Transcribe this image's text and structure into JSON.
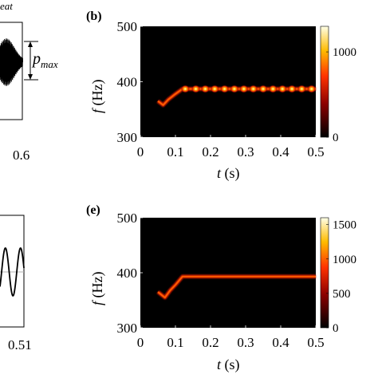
{
  "chart_data": [
    {
      "panel": "a (cropped, right edge)",
      "type": "line",
      "title_fragment": "eat",
      "annotation": "p",
      "annotation_sub": "max",
      "xtick_labels": [
        "0.6"
      ],
      "trace": "decaying oscillation"
    },
    {
      "panel": "b",
      "type": "heatmap",
      "label": "(b)",
      "xlabel": "t (s)",
      "ylabel": "f (Hz)",
      "xlim": [
        0,
        0.5
      ],
      "ylim": [
        300,
        500
      ],
      "xticks": [
        0,
        0.1,
        0.2,
        0.3,
        0.4,
        0.5
      ],
      "yticks": [
        300,
        400,
        500
      ],
      "colorbar": {
        "min": 0,
        "max": 1300,
        "ticks": [
          0,
          1000
        ]
      },
      "ridge": [
        [
          0.05,
          365
        ],
        [
          0.065,
          358
        ],
        [
          0.08,
          368
        ],
        [
          0.1,
          378
        ],
        [
          0.12,
          387
        ],
        [
          0.5,
          387
        ]
      ],
      "pulse_times": [
        0.128,
        0.158,
        0.185,
        0.212,
        0.24,
        0.268,
        0.295,
        0.322,
        0.35,
        0.378,
        0.405,
        0.432,
        0.46,
        0.488
      ],
      "pulse_freq": 387
    },
    {
      "panel": "d (cropped, right edge)",
      "type": "line",
      "xtick_labels": [
        "0.51"
      ],
      "trace": "sinusoid"
    },
    {
      "panel": "e",
      "type": "heatmap",
      "label": "(e)",
      "xlabel": "t (s)",
      "ylabel": "f (Hz)",
      "xlim": [
        0,
        0.5
      ],
      "ylim": [
        300,
        500
      ],
      "xticks": [
        0,
        0.1,
        0.2,
        0.3,
        0.4,
        0.5
      ],
      "yticks": [
        300,
        400,
        500
      ],
      "colorbar": {
        "min": 0,
        "max": 1600,
        "ticks": [
          0,
          500,
          1000,
          1500
        ]
      },
      "ridge": [
        [
          0.05,
          365
        ],
        [
          0.07,
          355
        ],
        [
          0.085,
          368
        ],
        [
          0.1,
          378
        ],
        [
          0.12,
          393
        ],
        [
          0.5,
          393
        ]
      ]
    }
  ],
  "text": {
    "a_title": "eat",
    "a_ann_main": "p",
    "a_ann_sub": "max",
    "a_tick": "0.6",
    "d_tick": "0.51",
    "b_label": "(b)",
    "e_label": "(e)",
    "t_label": "t",
    "t_unit": " (s)",
    "f_label": "f",
    "f_unit": " (Hz)"
  }
}
